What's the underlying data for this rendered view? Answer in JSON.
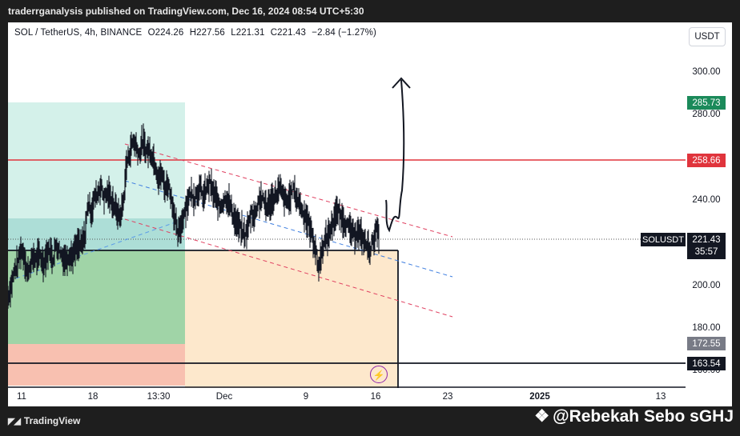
{
  "header": {
    "published_text": "traderrganalysis published on TradingView.com, Dec 16, 2024 08:54 UTC+5:30"
  },
  "legend": {
    "symbol": "SOL / TetherUS, 4h, BINANCE",
    "open": "O224.26",
    "high": "H227.56",
    "low": "L221.31",
    "close": "C221.43",
    "change": "−2.84 (−1.27%)"
  },
  "currency_button": "USDT",
  "price_axis": {
    "ticks": [
      "300.00",
      "280.00",
      "240.00",
      "200.00",
      "180.00",
      "160.00"
    ],
    "labels": {
      "target_high": "285.73",
      "resistance": "258.66",
      "current_symbol": "SOLUSDT",
      "current_price": "221.43",
      "countdown": "35:57",
      "mid_level": "172.55",
      "support": "163.54"
    }
  },
  "time_axis": {
    "ticks": [
      "11",
      "18",
      "13:30",
      "Dec",
      "9",
      "16",
      "23",
      "2025",
      "13"
    ]
  },
  "footer": {
    "brand": "TradingView",
    "watermark": "@Rebekah Sebo sGHJ"
  },
  "colors": {
    "resistance": "#e0343c",
    "target": "#1b8a5a",
    "channel_red": "#e04060",
    "channel_blue": "#3f7fe0",
    "stop_zone": "#f8c0b0",
    "target_zone": "#bfe8e0",
    "loss_zone": "#fde8cc"
  },
  "chart_data": {
    "type": "candlestick",
    "symbol": "SOL / TetherUS",
    "interval": "4h",
    "exchange": "BINANCE",
    "ohlc_last": {
      "open": 224.26,
      "high": 227.56,
      "low": 221.31,
      "close": 221.43,
      "change": -2.84,
      "change_pct": -1.27
    },
    "ylim": [
      158,
      312
    ],
    "price_levels": [
      {
        "label": "258.66",
        "value": 258.66
      },
      {
        "label": "163.54",
        "value": 163.54
      },
      {
        "label": "285.73",
        "value": 285.73
      },
      {
        "label": "172.55",
        "value": 172.55
      },
      {
        "label": "221.43",
        "value": 221.43
      }
    ],
    "price_path": [
      [
        0,
        196
      ],
      [
        4,
        201
      ],
      [
        8,
        207
      ],
      [
        12,
        210
      ],
      [
        16,
        216
      ],
      [
        20,
        214
      ],
      [
        24,
        206
      ],
      [
        28,
        210
      ],
      [
        32,
        213
      ],
      [
        36,
        212
      ],
      [
        40,
        214
      ],
      [
        44,
        210
      ],
      [
        48,
        214
      ],
      [
        52,
        216
      ],
      [
        56,
        212
      ],
      [
        60,
        218
      ],
      [
        64,
        216
      ],
      [
        68,
        213
      ],
      [
        72,
        212
      ],
      [
        76,
        214
      ],
      [
        80,
        213
      ],
      [
        84,
        216
      ],
      [
        88,
        218
      ],
      [
        92,
        218
      ],
      [
        96,
        222
      ],
      [
        100,
        236
      ],
      [
        104,
        232
      ],
      [
        108,
        238
      ],
      [
        112,
        240
      ],
      [
        116,
        243
      ],
      [
        120,
        238
      ],
      [
        124,
        240
      ],
      [
        128,
        238
      ],
      [
        132,
        235
      ],
      [
        136,
        232
      ],
      [
        140,
        230
      ],
      [
        144,
        236
      ],
      [
        148,
        252
      ],
      [
        152,
        257
      ],
      [
        156,
        262
      ],
      [
        160,
        260
      ],
      [
        164,
        256
      ],
      [
        168,
        262
      ],
      [
        172,
        258
      ],
      [
        176,
        258
      ],
      [
        180,
        256
      ],
      [
        184,
        252
      ],
      [
        188,
        246
      ],
      [
        192,
        248
      ],
      [
        196,
        242
      ],
      [
        200,
        244
      ],
      [
        204,
        238
      ],
      [
        208,
        230
      ],
      [
        212,
        222
      ],
      [
        216,
        226
      ],
      [
        220,
        232
      ],
      [
        224,
        236
      ],
      [
        228,
        240
      ],
      [
        232,
        238
      ],
      [
        236,
        240
      ],
      [
        240,
        242
      ],
      [
        244,
        238
      ],
      [
        248,
        242
      ],
      [
        252,
        244
      ],
      [
        256,
        240
      ],
      [
        260,
        238
      ],
      [
        264,
        234
      ],
      [
        268,
        236
      ],
      [
        272,
        238
      ],
      [
        276,
        236
      ],
      [
        280,
        232
      ],
      [
        284,
        228
      ],
      [
        288,
        226
      ],
      [
        292,
        224
      ],
      [
        296,
        222
      ],
      [
        300,
        226
      ],
      [
        304,
        232
      ],
      [
        308,
        230
      ],
      [
        312,
        236
      ],
      [
        316,
        238
      ],
      [
        320,
        236
      ],
      [
        324,
        234
      ],
      [
        328,
        236
      ],
      [
        332,
        238
      ],
      [
        336,
        240
      ],
      [
        340,
        242
      ],
      [
        344,
        238
      ],
      [
        348,
        236
      ],
      [
        352,
        238
      ],
      [
        356,
        242
      ],
      [
        360,
        238
      ],
      [
        364,
        236
      ],
      [
        368,
        232
      ],
      [
        372,
        230
      ],
      [
        376,
        226
      ],
      [
        380,
        222
      ],
      [
        384,
        216
      ],
      [
        388,
        208
      ],
      [
        392,
        216
      ],
      [
        396,
        220
      ],
      [
        400,
        222
      ],
      [
        404,
        226
      ],
      [
        408,
        230
      ],
      [
        412,
        232
      ],
      [
        416,
        230
      ],
      [
        420,
        228
      ],
      [
        424,
        226
      ],
      [
        428,
        224
      ],
      [
        432,
        222
      ],
      [
        436,
        224
      ],
      [
        440,
        222
      ],
      [
        444,
        220
      ],
      [
        448,
        218
      ],
      [
        452,
        216
      ],
      [
        456,
        220
      ],
      [
        460,
        224
      ],
      [
        464,
        222
      ]
    ],
    "price_path_units": "x: bar index (4h), y: USDT",
    "xlabels": [
      "11",
      "18",
      "13:30",
      "Dec",
      "9",
      "16",
      "23",
      "2025",
      "13"
    ]
  }
}
